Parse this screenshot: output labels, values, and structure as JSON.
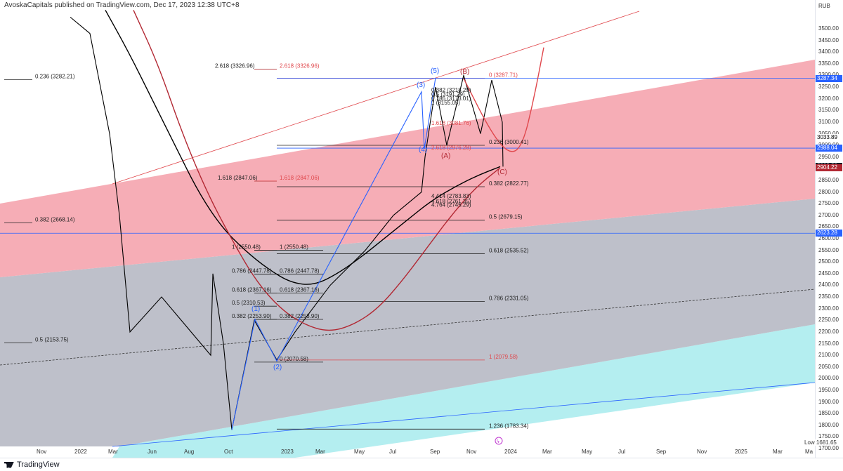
{
  "header": {
    "publisher": "AvoskaCapitals published on TradingView.com, Dec 17, 2023 12:38 UTC+8"
  },
  "footer": {
    "brand": "TradingView"
  },
  "colors": {
    "red_channel": "#f7a7b0",
    "gray_channel": "#b9bcc8",
    "cyan_channel": "#7fe0e4",
    "candles": "#000000",
    "blue": "#2962ff",
    "red": "#e0474c",
    "dark_red": "#b22833"
  },
  "price_scale": {
    "currency": "RUB",
    "labels": [
      "3500.00",
      "3450.00",
      "3400.00",
      "3350.00",
      "3300.00",
      "3250.00",
      "3200.00",
      "3150.00",
      "3100.00",
      "3050.00",
      "3000.00",
      "2950.00",
      "2900.00",
      "2850.00",
      "2800.00",
      "2750.00",
      "2700.00",
      "2650.00",
      "2600.00",
      "2550.00",
      "2500.00",
      "2450.00",
      "2400.00",
      "2350.00",
      "2300.00",
      "2250.00",
      "2200.00",
      "2150.00",
      "2100.00",
      "2050.00",
      "2000.00",
      "1950.00",
      "1900.00",
      "1850.00",
      "1800.00",
      "1750.00",
      "1700.00"
    ],
    "badges": [
      {
        "value": "3287.34",
        "color": "#2962ff"
      },
      {
        "value": "3033.89",
        "color": "#ffffff",
        "text_color": "#000000"
      },
      {
        "value": "2988.04",
        "color": "#2962ff"
      },
      {
        "value": "2909.20",
        "color": "#131722"
      },
      {
        "value": "2904.22",
        "color": "#b22833"
      },
      {
        "value": "2623.28",
        "color": "#2962ff"
      }
    ],
    "low_label": "Low",
    "low_value": "1681.65"
  },
  "time_axis": {
    "labels": [
      "Nov",
      "2022",
      "Mar",
      "Jun",
      "Aug",
      "Oct",
      "2023",
      "Mar",
      "May",
      "Jul",
      "Sep",
      "Nov",
      "2024",
      "Mar",
      "May",
      "Jul",
      "Sep",
      "Nov",
      "2025",
      "Mar",
      "Ma"
    ]
  },
  "chart_data": {
    "type": "line",
    "title": "",
    "xlabel": "",
    "ylabel": "",
    "ylim": [
      1681.65,
      3600
    ],
    "series": [
      {
        "values": [
          3550,
          3480,
          3050,
          2700,
          2200,
          2350,
          2250,
          2100,
          2450,
          2150,
          1780,
          2250,
          2080,
          2200,
          2400,
          2550,
          2700,
          2800,
          2950,
          3250,
          3000,
          3300,
          3050,
          3280,
          3100,
          2909
        ]
      },
      {
        "values": [
          3580,
          3400,
          3200,
          3000,
          2800,
          2650,
          2550,
          2470,
          2410,
          2400,
          2450,
          2520,
          2600,
          2680,
          2760,
          2820,
          2870,
          2909
        ]
      },
      {
        "values": [
          3580,
          3350,
          3050,
          2800,
          2600,
          2420,
          2300,
          2230,
          2200,
          2230,
          2300,
          2420,
          2560,
          2700,
          2820,
          2904
        ]
      },
      {
        "values": [
          3287,
          3050,
          2960,
          3000,
          3200,
          3420
        ]
      }
    ],
    "fib_left": [
      {
        "label": "0.236 (3282.21)"
      },
      {
        "label": "0.382 (2668.14)"
      },
      {
        "label": "0.5 (2153.75)"
      }
    ],
    "fib_mid_black": [
      {
        "label": "2.618 (3326.96)"
      },
      {
        "label": "1.618 (2847.06)"
      },
      {
        "label": "1 (2550.48)"
      },
      {
        "label": "0.786 (2447.78)"
      },
      {
        "label": "0.618 (2367.16)"
      },
      {
        "label": "0.5 (2310.53)"
      },
      {
        "label": "0.382 (2253.90)"
      }
    ],
    "fib_mid_red": [
      {
        "label": "2.618 (3326.96)"
      },
      {
        "label": "1.618 (2847.06)"
      }
    ],
    "fib_main": [
      {
        "label": "1 (2550.48)"
      },
      {
        "label": "0.786 (2447.78)"
      },
      {
        "label": "0.618 (2367.16)"
      },
      {
        "label": "0.382 (2253.90)"
      },
      {
        "label": "0 (2070.58)"
      }
    ],
    "fib_right": [
      {
        "label": "0.236 (3000.41)"
      },
      {
        "label": "0.382 (2822.77)"
      },
      {
        "label": "0.5 (2679.15)"
      },
      {
        "label": "0.618 (2535.52)"
      },
      {
        "label": "0.786 (2331.05)"
      },
      {
        "label": "1 (2079.58)"
      },
      {
        "label": "1.236 (1783.34)"
      }
    ],
    "fib_top": [
      {
        "label": "0 (3287.71)"
      },
      {
        "label": "1.618 (3081.76)"
      },
      {
        "label": "2.618 (2976.28)"
      }
    ],
    "ext_cluster": [
      {
        "label": "0.382 (3218.29)"
      },
      {
        "label": "0.5 (3191.29)"
      },
      {
        "label": "0.786 (3173.01)"
      },
      {
        "label": "1 (3155.05)"
      },
      {
        "label": "4.414 (2783.83)"
      },
      {
        "label": "4.618 (2761.35)"
      },
      {
        "label": "4.764 (2745.29)"
      }
    ],
    "waves": [
      {
        "label": "(1)"
      },
      {
        "label": "(2)"
      },
      {
        "label": "(3)"
      },
      {
        "label": "(4)"
      },
      {
        "label": "(5)"
      },
      {
        "label": "(A)"
      },
      {
        "label": "(B)"
      },
      {
        "label": "(C)"
      }
    ]
  }
}
